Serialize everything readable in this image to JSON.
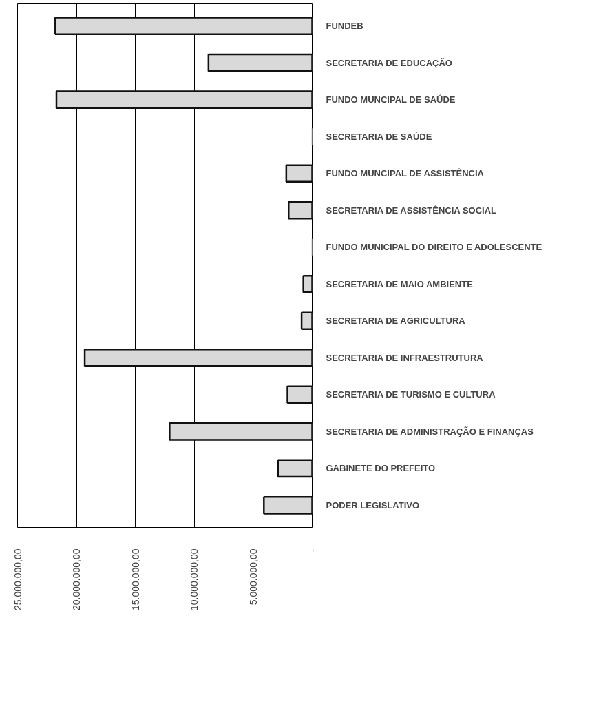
{
  "chart_data": {
    "type": "bar",
    "orientation": "horizontal",
    "categories": [
      "FUNDEB",
      "SECRETARIA DE EDUCAÇÃO",
      "FUNDO MUNCIPAL DE SAÚDE",
      "SECRETARIA DE SAÚDE",
      "FUNDO MUNCIPAL DE ASSISTÊNCIA",
      "SECRETARIA DE ASSISTÊNCIA SOCIAL",
      "FUNDO MUNICIPAL DO DIREITO E ADOLESCENTE",
      "SECRETARIA DE MAIO AMBIENTE",
      "SECRETARIA DE AGRICULTURA",
      "SECRETARIA DE INFRAESTRUTURA",
      "SECRETARIA DE TURISMO E CULTURA",
      "SECRETARIA DE ADMINISTRAÇÃO E FINANÇAS",
      "GABINETE DO PREFEITO",
      "PODER LEGISLATIVO"
    ],
    "values": [
      21800000,
      8800000,
      21700000,
      0,
      2200000,
      2000000,
      0,
      750000,
      900000,
      19300000,
      2100000,
      12100000,
      2900000,
      4100000
    ],
    "color": "#d9d9d9",
    "xlim": [
      25000000,
      0
    ],
    "xticks": [
      {
        "value": 25000000,
        "label": "25.000.000,00"
      },
      {
        "value": 20000000,
        "label": "20.000.000,00"
      },
      {
        "value": 15000000,
        "label": "15.000.000,00"
      },
      {
        "value": 10000000,
        "label": "10.000.000,00"
      },
      {
        "value": 5000000,
        "label": "5.000.000,00"
      },
      {
        "value": 0,
        "label": "-"
      }
    ],
    "grid": "x"
  }
}
